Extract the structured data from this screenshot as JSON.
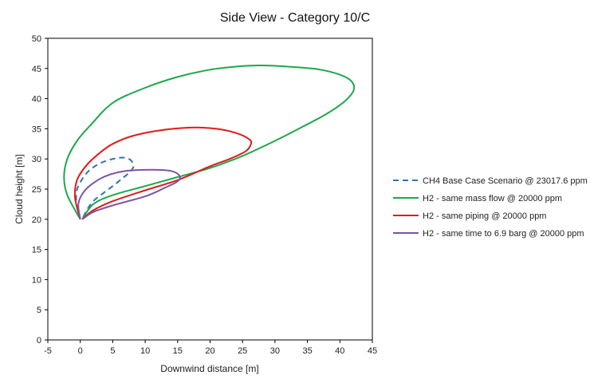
{
  "chart_data": {
    "type": "line",
    "title": "Side View - Category 10/C",
    "xlabel": "Downwind distance [m]",
    "ylabel": "Cloud height [m]",
    "xlim": [
      -5,
      45
    ],
    "ylim": [
      0,
      50
    ],
    "xticks": [
      -5,
      0,
      5,
      10,
      15,
      20,
      25,
      30,
      35,
      40,
      45
    ],
    "yticks": [
      0,
      5,
      10,
      15,
      20,
      25,
      30,
      35,
      40,
      45,
      50
    ],
    "grid": false,
    "legend_position": "right",
    "series": [
      {
        "name": "CH4 Base Case Scenario @ 23017.6 ppm",
        "color": "#2e75b6",
        "dash": true,
        "points": [
          [
            0,
            20
          ],
          [
            -0.5,
            22
          ],
          [
            -0.6,
            24.5
          ],
          [
            0.2,
            26.5
          ],
          [
            1.5,
            28.2
          ],
          [
            3.5,
            29.5
          ],
          [
            6,
            30.2
          ],
          [
            7.5,
            30
          ],
          [
            8.2,
            29
          ],
          [
            7.8,
            28
          ],
          [
            6.5,
            26.8
          ],
          [
            5,
            25.5
          ],
          [
            3.5,
            24.3
          ],
          [
            2,
            23
          ],
          [
            1,
            21.5
          ],
          [
            0.3,
            20
          ]
        ]
      },
      {
        "name": "H2 - same mass flow @ 20000 ppm",
        "color": "#1ca84a",
        "dash": false,
        "points": [
          [
            0,
            20
          ],
          [
            -2,
            24
          ],
          [
            -2.5,
            27
          ],
          [
            -2,
            30
          ],
          [
            -0.5,
            33
          ],
          [
            1.5,
            35.5
          ],
          [
            5,
            39.3
          ],
          [
            10,
            41.8
          ],
          [
            15,
            43.6
          ],
          [
            20,
            44.8
          ],
          [
            25,
            45.4
          ],
          [
            28,
            45.5
          ],
          [
            32,
            45.3
          ],
          [
            37,
            44.8
          ],
          [
            41,
            43.5
          ],
          [
            42.2,
            41.8
          ],
          [
            41,
            39.8
          ],
          [
            38,
            37.5
          ],
          [
            34,
            35.2
          ],
          [
            30,
            33
          ],
          [
            25,
            30.5
          ],
          [
            20,
            28.5
          ],
          [
            15,
            27
          ],
          [
            10,
            25.5
          ],
          [
            5,
            24
          ],
          [
            2,
            22.5
          ],
          [
            0.3,
            20
          ]
        ]
      },
      {
        "name": "H2 - same piping @ 20000 ppm",
        "color": "#e01b1b",
        "dash": false,
        "points": [
          [
            0,
            20
          ],
          [
            -0.8,
            23.5
          ],
          [
            -0.5,
            26.5
          ],
          [
            1,
            29
          ],
          [
            3,
            31
          ],
          [
            5,
            32.5
          ],
          [
            8,
            33.8
          ],
          [
            12,
            34.7
          ],
          [
            17,
            35.2
          ],
          [
            21,
            35
          ],
          [
            24,
            34.3
          ],
          [
            26,
            33.3
          ],
          [
            26.3,
            32.5
          ],
          [
            25.5,
            31.3
          ],
          [
            23,
            30
          ],
          [
            20,
            28.8
          ],
          [
            15,
            26.5
          ],
          [
            10,
            24.8
          ],
          [
            5,
            23
          ],
          [
            2,
            21.5
          ],
          [
            0.3,
            20
          ]
        ]
      },
      {
        "name": "H2 - same time to 6.9 barg @ 20000 ppm",
        "color": "#7a55a6",
        "dash": false,
        "points": [
          [
            0,
            20
          ],
          [
            -0.3,
            22.5
          ],
          [
            0.5,
            24.5
          ],
          [
            2,
            26
          ],
          [
            4,
            27.2
          ],
          [
            7,
            28
          ],
          [
            11,
            28.2
          ],
          [
            14,
            28
          ],
          [
            15.3,
            27.2
          ],
          [
            15,
            26.3
          ],
          [
            13,
            25.2
          ],
          [
            10,
            23.8
          ],
          [
            5,
            22.3
          ],
          [
            2,
            21.2
          ],
          [
            0.3,
            20
          ]
        ]
      }
    ]
  }
}
